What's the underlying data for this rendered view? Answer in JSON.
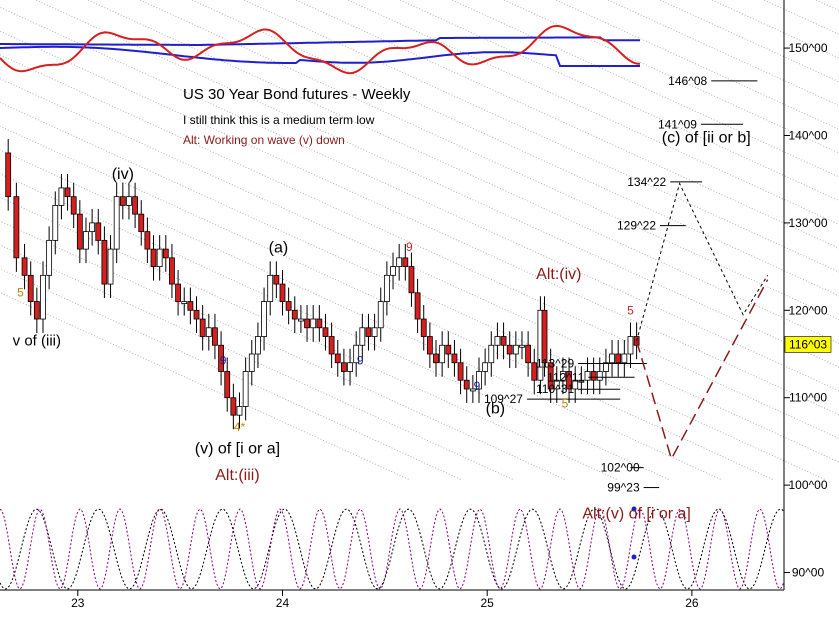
{
  "chart_data": {
    "type": "candlestick",
    "title": "US 30 Year Bond futures - Weekly",
    "notes": [
      {
        "text": "I still think this is a medium term low",
        "color": "#000000"
      },
      {
        "text": "Alt: Working on wave (v) down",
        "color": "#8b1a1a"
      }
    ],
    "x_ticks": [
      "23",
      "24",
      "25",
      "26"
    ],
    "x_tick_values": [
      23,
      24,
      25,
      26
    ],
    "xlim": [
      22.62,
      26.45
    ],
    "y_ticks": [
      "90^00",
      "100^00",
      "110^00",
      "120^00",
      "130^00",
      "140^00",
      "150^00"
    ],
    "y_tick_values": [
      90,
      100,
      110,
      120,
      130,
      140,
      150
    ],
    "ylim": [
      88,
      155.5
    ],
    "last_price": {
      "label": "116^03",
      "value": 116.1,
      "color": "#ffff00"
    },
    "price_path": [
      [
        22.62,
        138
      ],
      [
        22.66,
        133
      ],
      [
        22.7,
        126
      ],
      [
        22.74,
        124
      ],
      [
        22.77,
        121
      ],
      [
        22.8,
        119
      ],
      [
        22.83,
        124
      ],
      [
        22.86,
        128
      ],
      [
        22.89,
        132
      ],
      [
        22.92,
        134
      ],
      [
        22.95,
        133
      ],
      [
        22.98,
        131
      ],
      [
        23.01,
        127
      ],
      [
        23.04,
        129
      ],
      [
        23.07,
        130
      ],
      [
        23.1,
        128
      ],
      [
        23.13,
        123
      ],
      [
        23.16,
        127
      ],
      [
        23.19,
        133
      ],
      [
        23.22,
        132
      ],
      [
        23.25,
        133
      ],
      [
        23.28,
        131
      ],
      [
        23.31,
        129
      ],
      [
        23.34,
        127
      ],
      [
        23.37,
        125
      ],
      [
        23.4,
        127
      ],
      [
        23.43,
        126
      ],
      [
        23.46,
        123
      ],
      [
        23.49,
        121
      ],
      [
        23.52,
        121
      ],
      [
        23.55,
        120
      ],
      [
        23.58,
        119
      ],
      [
        23.61,
        117
      ],
      [
        23.64,
        118
      ],
      [
        23.67,
        116
      ],
      [
        23.7,
        113
      ],
      [
        23.73,
        110
      ],
      [
        23.76,
        108
      ],
      [
        23.79,
        109
      ],
      [
        23.82,
        113
      ],
      [
        23.85,
        115
      ],
      [
        23.88,
        117
      ],
      [
        23.91,
        121
      ],
      [
        23.94,
        124
      ],
      [
        23.97,
        123
      ],
      [
        24.0,
        121
      ],
      [
        24.03,
        120
      ],
      [
        24.06,
        119
      ],
      [
        24.09,
        119
      ],
      [
        24.12,
        118
      ],
      [
        24.15,
        119
      ],
      [
        24.18,
        118
      ],
      [
        24.21,
        117
      ],
      [
        24.24,
        115
      ],
      [
        24.27,
        114
      ],
      [
        24.3,
        113
      ],
      [
        24.33,
        114
      ],
      [
        24.36,
        116
      ],
      [
        24.39,
        118
      ],
      [
        24.42,
        117
      ],
      [
        24.45,
        118
      ],
      [
        24.48,
        121
      ],
      [
        24.51,
        124
      ],
      [
        24.54,
        125
      ],
      [
        24.57,
        126
      ],
      [
        24.6,
        125
      ],
      [
        24.63,
        122
      ],
      [
        24.66,
        119
      ],
      [
        24.69,
        117
      ],
      [
        24.72,
        115
      ],
      [
        24.75,
        114
      ],
      [
        24.78,
        116
      ],
      [
        24.81,
        115
      ],
      [
        24.84,
        114
      ],
      [
        24.87,
        112
      ],
      [
        24.9,
        111
      ],
      [
        24.93,
        111
      ],
      [
        24.96,
        113
      ],
      [
        24.99,
        114
      ],
      [
        25.02,
        116
      ],
      [
        25.05,
        117
      ],
      [
        25.08,
        116
      ],
      [
        25.11,
        115
      ],
      [
        25.14,
        116
      ],
      [
        25.17,
        116
      ],
      [
        25.2,
        114
      ],
      [
        25.23,
        112
      ],
      [
        25.26,
        120
      ],
      [
        25.28,
        114
      ],
      [
        25.31,
        111
      ],
      [
        25.34,
        112
      ],
      [
        25.37,
        113
      ],
      [
        25.4,
        111
      ],
      [
        25.43,
        112
      ],
      [
        25.46,
        112
      ],
      [
        25.49,
        113
      ],
      [
        25.52,
        112
      ],
      [
        25.55,
        113
      ],
      [
        25.58,
        114
      ],
      [
        25.61,
        115
      ],
      [
        25.64,
        114
      ],
      [
        25.67,
        115
      ],
      [
        25.7,
        117
      ],
      [
        25.73,
        116
      ]
    ],
    "projection_primary": [
      [
        25.73,
        116.5
      ],
      [
        25.94,
        134.5
      ],
      [
        26.25,
        119.5
      ],
      [
        26.37,
        124
      ]
    ],
    "projection_alt": [
      [
        25.73,
        116.5
      ],
      [
        25.9,
        103
      ],
      [
        26.37,
        123.5
      ]
    ],
    "levels": [
      {
        "label": "146^08",
        "value": 146.25,
        "x0": 25.85,
        "x1": 26.32
      },
      {
        "label": "141^09",
        "value": 141.28,
        "x0": 25.8,
        "x1": 26.25
      },
      {
        "label": "134^22",
        "value": 134.69,
        "x0": 25.65,
        "x1": 26.05
      },
      {
        "label": "129^22",
        "value": 129.69,
        "x0": 25.6,
        "x1": 25.97
      },
      {
        "label": "113^29",
        "value": 113.91,
        "x0": 25.2,
        "x1": 25.78
      },
      {
        "label": "112^11",
        "value": 112.34,
        "x0": 25.25,
        "x1": 25.72
      },
      {
        "label": "110^31",
        "value": 110.97,
        "x0": 25.2,
        "x1": 25.65
      },
      {
        "label": "109^27",
        "value": 109.84,
        "x0": 24.95,
        "x1": 25.65
      },
      {
        "label": "102^00",
        "value": 102.0,
        "x0": 25.52,
        "x1": 25.7
      },
      {
        "label": "99^23",
        "value": 99.72,
        "x0": 25.52,
        "x1": 25.84
      }
    ],
    "wave_labels": [
      {
        "text": "(c) of [ii or b]",
        "x": 26.07,
        "y": 139.2,
        "color": "#000000",
        "size": 16
      },
      {
        "text": "(iv)",
        "x": 23.22,
        "y": 135.0,
        "color": "#000000",
        "size": 16
      },
      {
        "text": "(a)",
        "x": 23.98,
        "y": 126.6,
        "color": "#000000",
        "size": 16
      },
      {
        "text": "Alt:(iv)",
        "x": 25.35,
        "y": 123.6,
        "color": "#8b1a1a",
        "size": 16
      },
      {
        "text": "v of (iii)",
        "x": 22.8,
        "y": 116.0,
        "color": "#000000",
        "size": 15
      },
      {
        "text": "(b)",
        "x": 25.04,
        "y": 108.2,
        "color": "#000000",
        "size": 16
      },
      {
        "text": "(v) of [i or a]",
        "x": 23.78,
        "y": 103.6,
        "color": "#000000",
        "size": 16
      },
      {
        "text": "Alt:(iii)",
        "x": 23.78,
        "y": 100.6,
        "color": "#8b1a1a",
        "size": 16
      },
      {
        "text": "Alt:(v) of [i or a]",
        "x": 25.73,
        "y": 96.2,
        "color": "#8b1a1a",
        "size": 16
      }
    ],
    "count_labels": [
      {
        "text": "5",
        "x": 22.72,
        "y": 121.6,
        "color": "#b8860b"
      },
      {
        "text": "9",
        "x": 23.71,
        "y": 113.8,
        "color": "#1a1aa0"
      },
      {
        "text": "9",
        "x": 24.38,
        "y": 113.8,
        "color": "#1a1aa0"
      },
      {
        "text": "9",
        "x": 24.62,
        "y": 126.8,
        "color": "#cc2a2a"
      },
      {
        "text": "9",
        "x": 24.95,
        "y": 110.9,
        "color": "#1a1aa0"
      },
      {
        "text": "5",
        "x": 25.38,
        "y": 108.9,
        "color": "#b8860b"
      },
      {
        "text": "5",
        "x": 25.7,
        "y": 119.5,
        "color": "#cc2a2a"
      },
      {
        "text": "4*",
        "x": 23.79,
        "y": 106.2,
        "color": "#b8860b"
      }
    ],
    "series": [
      {
        "name": "",
        "color": "#d62020",
        "kind": "oscillator"
      },
      {
        "name": "",
        "color": "#1f1fd0",
        "kind": "bands"
      },
      {
        "name": "",
        "color": "#000000",
        "kind": "cycle"
      },
      {
        "name": "",
        "color": "#800080",
        "kind": "cycle"
      }
    ],
    "grid": false,
    "legend": "none"
  }
}
